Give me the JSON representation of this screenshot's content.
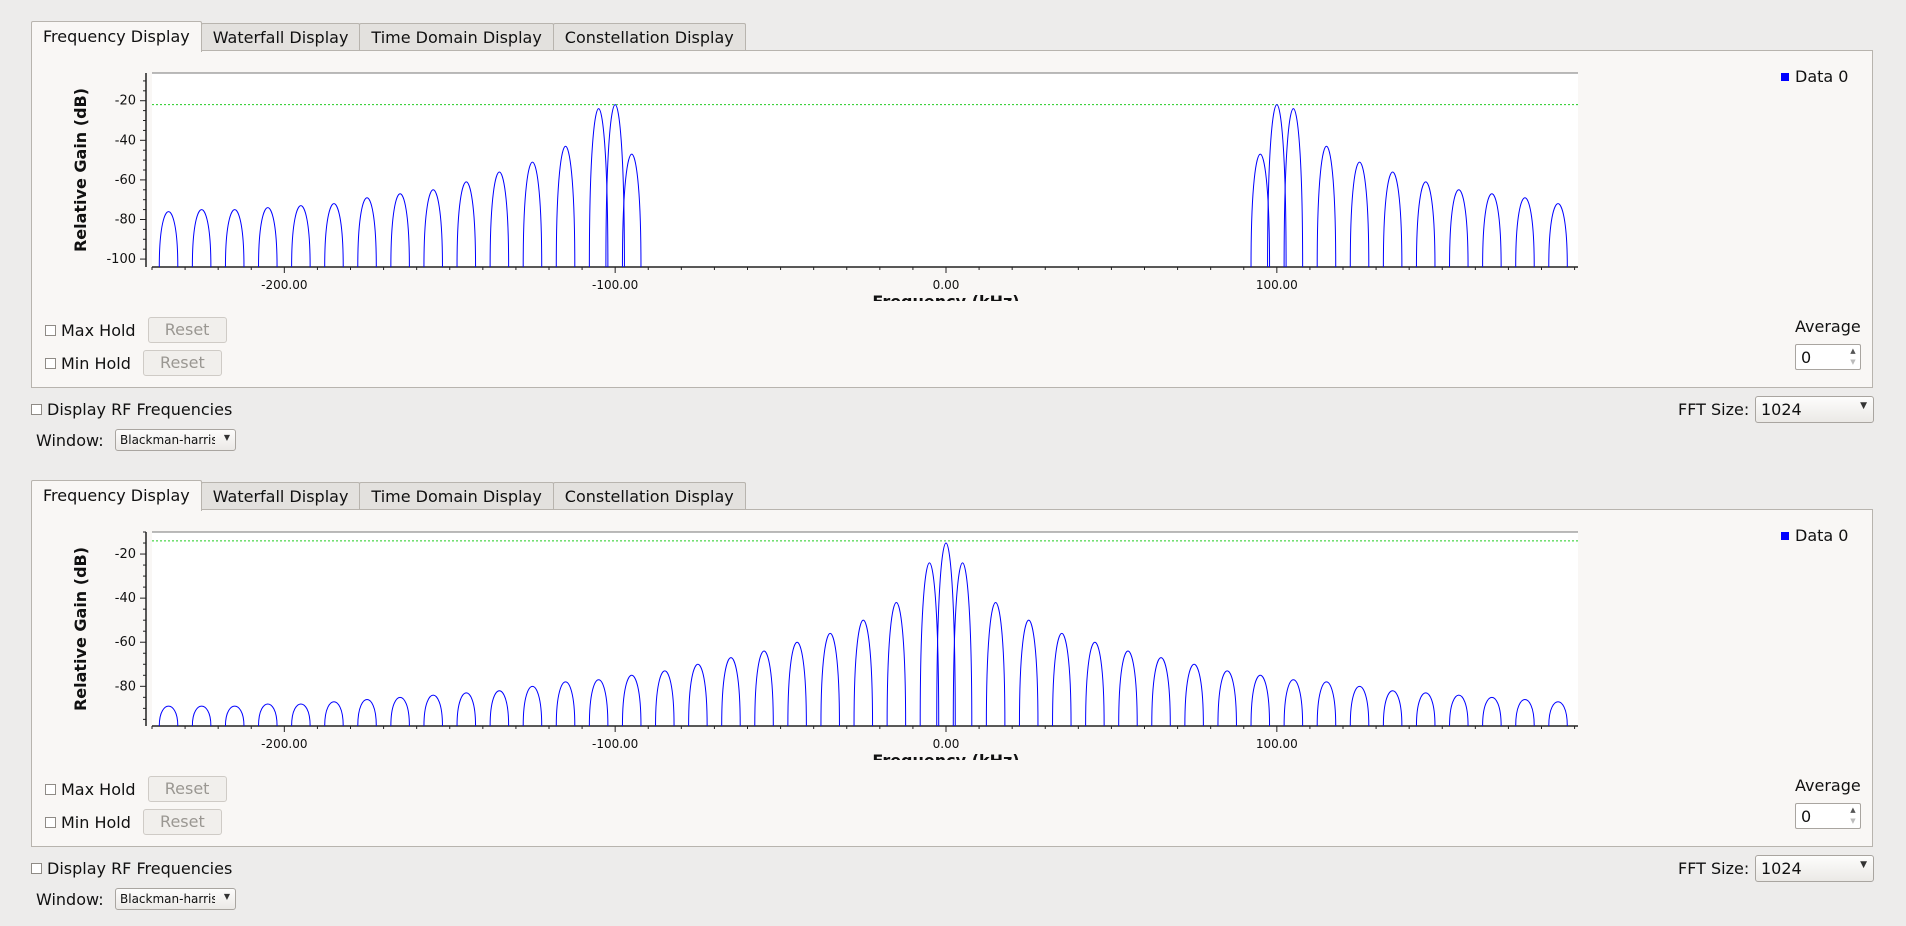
{
  "panels": [
    {
      "tabs": [
        "Frequency Display",
        "Waterfall Display",
        "Time Domain Display",
        "Constellation Display"
      ],
      "active_tab": 0,
      "legend": "Data 0",
      "max_hold_label": "Max Hold",
      "min_hold_label": "Min Hold",
      "reset_label": "Reset",
      "average_label": "Average",
      "average_value": "0",
      "display_rf_label": "Display RF Frequencies",
      "fft_size_label": "FFT Size:",
      "fft_size_value": "1024",
      "window_label": "Window:",
      "window_value": "Blackman-harris"
    },
    {
      "tabs": [
        "Frequency Display",
        "Waterfall Display",
        "Time Domain Display",
        "Constellation Display"
      ],
      "active_tab": 0,
      "legend": "Data 0",
      "max_hold_label": "Max Hold",
      "min_hold_label": "Min Hold",
      "reset_label": "Reset",
      "average_label": "Average",
      "average_value": "0",
      "display_rf_label": "Display RF Frequencies",
      "fft_size_label": "FFT Size:",
      "fft_size_value": "1024",
      "window_label": "Window:",
      "window_value": "Blackman-harris"
    }
  ],
  "chart_data": [
    {
      "type": "line",
      "xlabel": "Frequency (kHz)",
      "ylabel": "Relative Gain (dB)",
      "xlim": [
        -240,
        240
      ],
      "ylim": [
        -104,
        -6
      ],
      "x_ticks": [
        "-200.00",
        "-100.00",
        "0.00",
        "100.00",
        "200.00"
      ],
      "y_ticks": [
        "-20",
        "-40",
        "-60",
        "-80",
        "-100"
      ],
      "y_tick_values": [
        -20,
        -40,
        -60,
        -80,
        -100
      ],
      "threshold_db": -22,
      "legend": [
        "Data 0"
      ],
      "series_color": "#0000ff",
      "threshold_color": "#22cc22",
      "floor_db": -104,
      "peaks": [
        {
          "f": -235,
          "db": -76
        },
        {
          "f": -225,
          "db": -75
        },
        {
          "f": -215,
          "db": -75
        },
        {
          "f": -205,
          "db": -74
        },
        {
          "f": -195,
          "db": -73
        },
        {
          "f": -185,
          "db": -72
        },
        {
          "f": -175,
          "db": -69
        },
        {
          "f": -165,
          "db": -67
        },
        {
          "f": -155,
          "db": -65
        },
        {
          "f": -145,
          "db": -61
        },
        {
          "f": -135,
          "db": -56
        },
        {
          "f": -125,
          "db": -51
        },
        {
          "f": -115,
          "db": -43
        },
        {
          "f": -105,
          "db": -24
        },
        {
          "f": -100,
          "db": -22
        },
        {
          "f": -95,
          "db": -47
        },
        {
          "f": 95,
          "db": -47
        },
        {
          "f": 100,
          "db": -22
        },
        {
          "f": 105,
          "db": -24
        },
        {
          "f": 115,
          "db": -43
        },
        {
          "f": 125,
          "db": -51
        },
        {
          "f": 135,
          "db": -56
        },
        {
          "f": 145,
          "db": -61
        },
        {
          "f": 155,
          "db": -65
        },
        {
          "f": 165,
          "db": -67
        },
        {
          "f": 175,
          "db": -69
        },
        {
          "f": 185,
          "db": -72
        },
        {
          "f": 195,
          "db": -73
        },
        {
          "f": 205,
          "db": -74
        },
        {
          "f": 215,
          "db": -75
        },
        {
          "f": 225,
          "db": -75
        },
        {
          "f": 235,
          "db": -76
        }
      ]
    },
    {
      "type": "line",
      "xlabel": "Frequency (kHz)",
      "ylabel": "Relative Gain (dB)",
      "xlim": [
        -240,
        240
      ],
      "ylim": [
        -98,
        -10
      ],
      "x_ticks": [
        "-200.00",
        "-100.00",
        "0.00",
        "100.00",
        "200.00"
      ],
      "y_ticks": [
        "-20",
        "-40",
        "-60",
        "-80"
      ],
      "y_tick_values": [
        -20,
        -40,
        -60,
        -80
      ],
      "threshold_db": -14,
      "legend": [
        "Data 0"
      ],
      "series_color": "#0000ff",
      "threshold_color": "#22cc22",
      "floor_db": -98,
      "peaks": [
        {
          "f": -235,
          "db": -89
        },
        {
          "f": -225,
          "db": -89
        },
        {
          "f": -215,
          "db": -89
        },
        {
          "f": -205,
          "db": -88
        },
        {
          "f": -195,
          "db": -88
        },
        {
          "f": -185,
          "db": -87
        },
        {
          "f": -175,
          "db": -86
        },
        {
          "f": -165,
          "db": -85
        },
        {
          "f": -155,
          "db": -84
        },
        {
          "f": -145,
          "db": -83
        },
        {
          "f": -135,
          "db": -82
        },
        {
          "f": -125,
          "db": -80
        },
        {
          "f": -115,
          "db": -78
        },
        {
          "f": -105,
          "db": -77
        },
        {
          "f": -95,
          "db": -75
        },
        {
          "f": -85,
          "db": -73
        },
        {
          "f": -75,
          "db": -70
        },
        {
          "f": -65,
          "db": -67
        },
        {
          "f": -55,
          "db": -64
        },
        {
          "f": -45,
          "db": -60
        },
        {
          "f": -35,
          "db": -56
        },
        {
          "f": -25,
          "db": -50
        },
        {
          "f": -15,
          "db": -42
        },
        {
          "f": -5,
          "db": -24
        },
        {
          "f": 0,
          "db": -15
        },
        {
          "f": 5,
          "db": -24
        },
        {
          "f": 15,
          "db": -42
        },
        {
          "f": 25,
          "db": -50
        },
        {
          "f": 35,
          "db": -56
        },
        {
          "f": 45,
          "db": -60
        },
        {
          "f": 55,
          "db": -64
        },
        {
          "f": 65,
          "db": -67
        },
        {
          "f": 75,
          "db": -70
        },
        {
          "f": 85,
          "db": -73
        },
        {
          "f": 95,
          "db": -75
        },
        {
          "f": 105,
          "db": -77
        },
        {
          "f": 115,
          "db": -78
        },
        {
          "f": 125,
          "db": -80
        },
        {
          "f": 135,
          "db": -82
        },
        {
          "f": 145,
          "db": -83
        },
        {
          "f": 155,
          "db": -84
        },
        {
          "f": 165,
          "db": -85
        },
        {
          "f": 175,
          "db": -86
        },
        {
          "f": 185,
          "db": -87
        },
        {
          "f": 195,
          "db": -88
        },
        {
          "f": 205,
          "db": -88
        },
        {
          "f": 215,
          "db": -89
        },
        {
          "f": 225,
          "db": -89
        },
        {
          "f": 235,
          "db": -89
        }
      ]
    }
  ]
}
